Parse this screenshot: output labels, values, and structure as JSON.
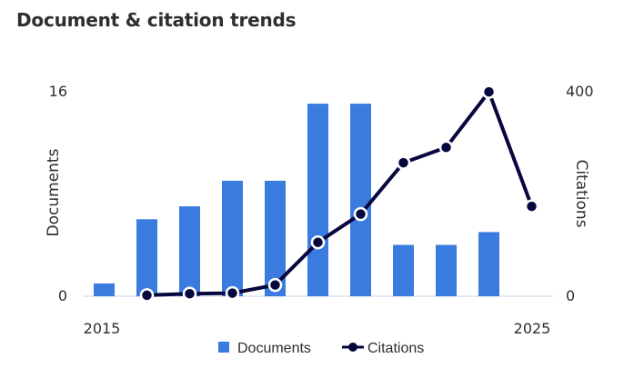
{
  "chart_data": {
    "title": "Document & citation trends",
    "type": "bar+line",
    "x": [
      2015,
      2016,
      2017,
      2018,
      2019,
      2020,
      2021,
      2022,
      2023,
      2024,
      2025
    ],
    "x_tick_labels": [
      "2015",
      "2025"
    ],
    "series": [
      {
        "name": "Documents",
        "type": "bar",
        "axis": "left",
        "color": "#3a7be0",
        "values": [
          1,
          6,
          7,
          9,
          9,
          15,
          15,
          4,
          4,
          5,
          null
        ]
      },
      {
        "name": "Citations",
        "type": "line",
        "axis": "right",
        "color": "#07073f",
        "values": [
          null,
          2,
          5,
          6,
          22,
          105,
          160,
          260,
          290,
          398,
          175
        ]
      }
    ],
    "y_left": {
      "label": "Documents",
      "range": [
        0,
        16
      ],
      "ticks": [
        "0",
        "16"
      ]
    },
    "y_right": {
      "label": "Citations",
      "range": [
        0,
        400
      ],
      "ticks": [
        "0",
        "400"
      ]
    },
    "legend_position": "bottom"
  }
}
